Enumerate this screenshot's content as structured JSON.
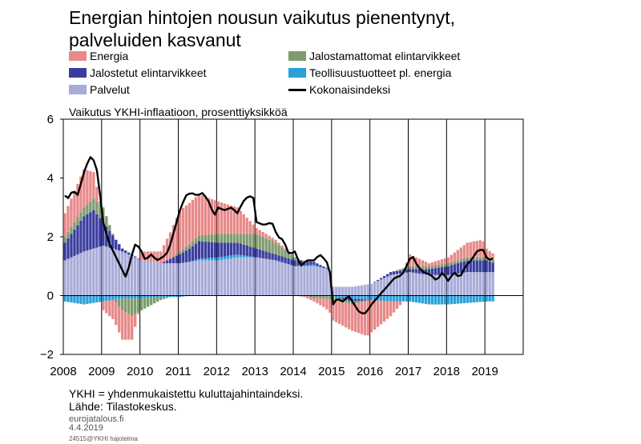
{
  "title_lines": [
    "Energian hintojen nousun vaikutus pienentynyt,",
    "palveluiden kasvanut"
  ],
  "subtitle": "Vaikutus YKHI-inflaatioon, prosenttiyksikköä",
  "footnote": "YKHI = yhdenmukaistettu kuluttajahintaindeksi.",
  "source": "Lähde: Tilastokeskus.",
  "site": "eurojatalous.fi",
  "date": "4.4.2019",
  "code": "24515@YKHI hajotelma",
  "chart_data": {
    "type": "bar",
    "stacked": true,
    "ylim": [
      -2,
      6
    ],
    "yticks": [
      -2,
      0,
      2,
      4,
      6
    ],
    "ytick_labels": [
      "−2",
      "0",
      "2",
      "4",
      "6"
    ],
    "xlim": [
      2008.0,
      2020.0
    ],
    "xticks": [
      2008,
      2009,
      2010,
      2011,
      2012,
      2013,
      2014,
      2015,
      2016,
      2017,
      2018,
      2019
    ],
    "grid": "vertical",
    "legend_position": "top",
    "series": [
      {
        "name": "Energia",
        "color": "#e88a8a",
        "anchors": [
          [
            2008.0,
            0.8
          ],
          [
            2008.5,
            1.3
          ],
          [
            2008.75,
            0.9
          ],
          [
            2009.0,
            -0.3
          ],
          [
            2009.5,
            -1.0
          ],
          [
            2009.75,
            -0.8
          ],
          [
            2010.0,
            0.3
          ],
          [
            2010.5,
            0.4
          ],
          [
            2011.0,
            1.4
          ],
          [
            2011.5,
            1.4
          ],
          [
            2012.0,
            1.1
          ],
          [
            2012.5,
            0.9
          ],
          [
            2013.0,
            0.2
          ],
          [
            2013.5,
            0.1
          ],
          [
            2014.0,
            0.0
          ],
          [
            2014.5,
            -0.1
          ],
          [
            2014.9,
            -0.4
          ],
          [
            2015.0,
            -0.7
          ],
          [
            2015.5,
            -0.9
          ],
          [
            2015.9,
            -1.2
          ],
          [
            2016.0,
            -1.1
          ],
          [
            2016.5,
            -0.5
          ],
          [
            2016.9,
            0.1
          ],
          [
            2017.0,
            0.4
          ],
          [
            2017.5,
            0.1
          ],
          [
            2018.0,
            0.2
          ],
          [
            2018.5,
            0.5
          ],
          [
            2018.9,
            0.6
          ],
          [
            2019.0,
            0.3
          ],
          [
            2019.2,
            0.2
          ]
        ]
      },
      {
        "name": "Jalostamattomat elintarvikkeet",
        "color": "#7e9c6e",
        "anchors": [
          [
            2008.0,
            0.2
          ],
          [
            2008.5,
            0.3
          ],
          [
            2009.0,
            0.5
          ],
          [
            2009.5,
            -0.4
          ],
          [
            2009.75,
            -0.6
          ],
          [
            2010.0,
            -0.4
          ],
          [
            2010.5,
            -0.1
          ],
          [
            2011.0,
            0.1
          ],
          [
            2011.5,
            0.2
          ],
          [
            2012.0,
            0.3
          ],
          [
            2012.5,
            0.3
          ],
          [
            2013.0,
            0.5
          ],
          [
            2013.5,
            0.4
          ],
          [
            2014.0,
            0.1
          ],
          [
            2014.5,
            -0.1
          ],
          [
            2015.0,
            -0.1
          ],
          [
            2015.5,
            -0.1
          ],
          [
            2016.0,
            0.0
          ],
          [
            2016.5,
            0.0
          ],
          [
            2017.0,
            0.1
          ],
          [
            2017.5,
            0.1
          ],
          [
            2018.0,
            0.1
          ],
          [
            2018.5,
            0.1
          ],
          [
            2019.0,
            0.1
          ],
          [
            2019.2,
            0.1
          ]
        ]
      },
      {
        "name": "Jalostetut elintarvikkeet",
        "color": "#3a3d9e",
        "anchors": [
          [
            2008.0,
            0.6
          ],
          [
            2008.5,
            1.2
          ],
          [
            2008.75,
            1.3
          ],
          [
            2009.0,
            0.8
          ],
          [
            2009.5,
            0.1
          ],
          [
            2010.0,
            0.0
          ],
          [
            2010.5,
            0.0
          ],
          [
            2011.0,
            0.3
          ],
          [
            2011.5,
            0.6
          ],
          [
            2012.0,
            0.5
          ],
          [
            2012.5,
            0.4
          ],
          [
            2013.0,
            0.3
          ],
          [
            2013.5,
            0.2
          ],
          [
            2014.0,
            0.2
          ],
          [
            2014.5,
            0.1
          ],
          [
            2015.0,
            0.0
          ],
          [
            2015.5,
            -0.1
          ],
          [
            2016.0,
            0.0
          ],
          [
            2016.5,
            0.1
          ],
          [
            2017.0,
            0.1
          ],
          [
            2017.5,
            0.2
          ],
          [
            2018.0,
            0.3
          ],
          [
            2018.5,
            0.4
          ],
          [
            2019.0,
            0.4
          ],
          [
            2019.2,
            0.3
          ]
        ]
      },
      {
        "name": "Teollisuustuotteet pl. energia",
        "color": "#2a9fd8",
        "anchors": [
          [
            2008.0,
            -0.2
          ],
          [
            2008.5,
            -0.3
          ],
          [
            2009.0,
            -0.2
          ],
          [
            2009.5,
            -0.1
          ],
          [
            2010.0,
            -0.1
          ],
          [
            2010.5,
            -0.05
          ],
          [
            2011.0,
            -0.05
          ],
          [
            2011.5,
            0.05
          ],
          [
            2012.0,
            0.1
          ],
          [
            2012.5,
            0.1
          ],
          [
            2013.0,
            0.0
          ],
          [
            2013.5,
            0.0
          ],
          [
            2014.0,
            0.0
          ],
          [
            2014.5,
            0.05
          ],
          [
            2015.0,
            -0.05
          ],
          [
            2015.5,
            -0.1
          ],
          [
            2016.0,
            -0.15
          ],
          [
            2016.5,
            -0.2
          ],
          [
            2017.0,
            -0.2
          ],
          [
            2017.5,
            -0.3
          ],
          [
            2018.0,
            -0.3
          ],
          [
            2018.5,
            -0.25
          ],
          [
            2019.0,
            -0.2
          ],
          [
            2019.2,
            -0.2
          ]
        ]
      },
      {
        "name": "Palvelut",
        "color": "#a9acd8",
        "anchors": [
          [
            2008.0,
            1.2
          ],
          [
            2008.5,
            1.5
          ],
          [
            2009.0,
            1.7
          ],
          [
            2009.5,
            1.5
          ],
          [
            2010.0,
            1.2
          ],
          [
            2010.5,
            1.1
          ],
          [
            2011.0,
            1.1
          ],
          [
            2011.5,
            1.2
          ],
          [
            2012.0,
            1.2
          ],
          [
            2012.5,
            1.3
          ],
          [
            2013.0,
            1.3
          ],
          [
            2013.5,
            1.2
          ],
          [
            2014.0,
            1.0
          ],
          [
            2014.5,
            1.0
          ],
          [
            2014.9,
            0.9
          ],
          [
            2015.0,
            0.3
          ],
          [
            2015.5,
            0.3
          ],
          [
            2016.0,
            0.4
          ],
          [
            2016.5,
            0.7
          ],
          [
            2017.0,
            0.8
          ],
          [
            2017.5,
            0.7
          ],
          [
            2018.0,
            0.7
          ],
          [
            2018.5,
            0.8
          ],
          [
            2019.0,
            0.8
          ],
          [
            2019.2,
            0.8
          ]
        ]
      }
    ],
    "line": {
      "name": "Kokonaisindeksi",
      "color": "#000000",
      "anchors": [
        [
          2008.0,
          3.4
        ],
        [
          2008.1,
          3.3
        ],
        [
          2008.2,
          3.6
        ],
        [
          2008.35,
          3.4
        ],
        [
          2008.45,
          4.0
        ],
        [
          2008.55,
          4.4
        ],
        [
          2008.7,
          4.8
        ],
        [
          2008.85,
          4.2
        ],
        [
          2009.0,
          2.5
        ],
        [
          2009.15,
          1.8
        ],
        [
          2009.3,
          1.4
        ],
        [
          2009.45,
          1.0
        ],
        [
          2009.6,
          0.6
        ],
        [
          2009.75,
          1.4
        ],
        [
          2009.85,
          1.8
        ],
        [
          2010.0,
          1.5
        ],
        [
          2010.1,
          1.2
        ],
        [
          2010.25,
          1.4
        ],
        [
          2010.4,
          1.2
        ],
        [
          2010.55,
          1.3
        ],
        [
          2010.7,
          1.5
        ],
        [
          2010.85,
          2.2
        ],
        [
          2011.0,
          2.9
        ],
        [
          2011.15,
          3.4
        ],
        [
          2011.3,
          3.5
        ],
        [
          2011.45,
          3.4
        ],
        [
          2011.6,
          3.5
        ],
        [
          2011.75,
          3.2
        ],
        [
          2011.9,
          2.7
        ],
        [
          2012.0,
          3.0
        ],
        [
          2012.15,
          2.9
        ],
        [
          2012.35,
          3.0
        ],
        [
          2012.5,
          2.8
        ],
        [
          2012.65,
          3.2
        ],
        [
          2012.8,
          3.4
        ],
        [
          2012.95,
          3.3
        ],
        [
          2013.0,
          2.5
        ],
        [
          2013.2,
          2.4
        ],
        [
          2013.4,
          2.5
        ],
        [
          2013.55,
          2.0
        ],
        [
          2013.7,
          1.9
        ],
        [
          2013.85,
          1.4
        ],
        [
          2014.0,
          1.5
        ],
        [
          2014.15,
          1.0
        ],
        [
          2014.3,
          1.2
        ],
        [
          2014.5,
          1.2
        ],
        [
          2014.65,
          1.4
        ],
        [
          2014.8,
          1.2
        ],
        [
          2014.9,
          1.0
        ],
        [
          2015.0,
          -0.3
        ],
        [
          2015.1,
          -0.1
        ],
        [
          2015.25,
          -0.2
        ],
        [
          2015.4,
          0.0
        ],
        [
          2015.55,
          -0.3
        ],
        [
          2015.7,
          -0.6
        ],
        [
          2015.85,
          -0.6
        ],
        [
          2016.0,
          -0.3
        ],
        [
          2016.2,
          0.0
        ],
        [
          2016.4,
          0.3
        ],
        [
          2016.6,
          0.6
        ],
        [
          2016.8,
          0.7
        ],
        [
          2016.95,
          1.1
        ],
        [
          2017.05,
          1.4
        ],
        [
          2017.2,
          1.0
        ],
        [
          2017.35,
          0.8
        ],
        [
          2017.55,
          0.7
        ],
        [
          2017.7,
          0.5
        ],
        [
          2017.85,
          0.8
        ],
        [
          2018.0,
          0.5
        ],
        [
          2018.15,
          0.8
        ],
        [
          2018.3,
          0.6
        ],
        [
          2018.45,
          1.0
        ],
        [
          2018.6,
          1.2
        ],
        [
          2018.75,
          1.5
        ],
        [
          2018.9,
          1.6
        ],
        [
          2019.0,
          1.3
        ],
        [
          2019.1,
          1.2
        ],
        [
          2019.2,
          1.3
        ]
      ]
    }
  }
}
